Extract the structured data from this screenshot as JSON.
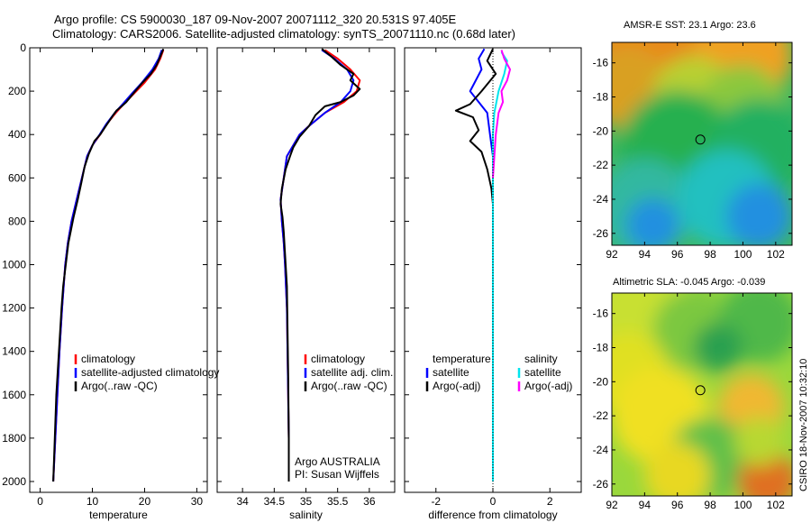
{
  "header": {
    "title_line1": "Argo profile: CS 5900030_187 09-Nov-2007 20071112_320 20.531S 97.405E",
    "title_line2": "Climatology: CARS2006. Satellite-adjusted climatology: synTS_20071110.nc (0.68d later)"
  },
  "side_label": "CSIRO 18-Nov-2007 10:32:10",
  "colors": {
    "climatology": "#ff0000",
    "satellite": "#0000ff",
    "argo": "#000000",
    "salinity_satellite": "#00e5ee",
    "salinity_argo": "#ff00ff"
  },
  "chart_data": [
    {
      "type": "line",
      "xlabel": "temperature",
      "xlim": [
        -2,
        32
      ],
      "ylim": [
        0,
        2050
      ],
      "y_inverted": true,
      "xticks": [
        "0",
        "10",
        "20",
        "30"
      ],
      "xtick_values": [
        0,
        10,
        20,
        30
      ],
      "yticks": [
        "0",
        "200",
        "400",
        "600",
        "800",
        "1000",
        "1200",
        "1400",
        "1600",
        "1800",
        "2000"
      ],
      "ytick_values": [
        0,
        200,
        400,
        600,
        800,
        1000,
        1200,
        1400,
        1600,
        1800,
        2000
      ],
      "legend": [
        "climatology",
        "satellite-adjusted climatology",
        "Argo(..raw -QC)"
      ],
      "series": [
        {
          "name": "climatology",
          "color": "#ff0000",
          "points": [
            [
              23.6,
              10
            ],
            [
              23,
              50
            ],
            [
              22,
              100
            ],
            [
              20,
              160
            ],
            [
              18,
              210
            ],
            [
              16,
              260
            ],
            [
              14.5,
              300
            ],
            [
              12.8,
              350
            ],
            [
              11.5,
              400
            ],
            [
              10,
              450
            ],
            [
              9,
              500
            ],
            [
              8,
              600
            ],
            [
              7,
              700
            ],
            [
              6,
              800
            ],
            [
              5.3,
              900
            ],
            [
              4.8,
              1000
            ],
            [
              4.2,
              1200
            ],
            [
              3.7,
              1400
            ],
            [
              3.3,
              1600
            ],
            [
              2.9,
              1800
            ],
            [
              2.5,
              2000
            ]
          ]
        },
        {
          "name": "satellite-adjusted climatology",
          "color": "#0000ff",
          "points": [
            [
              23.3,
              10
            ],
            [
              22.7,
              50
            ],
            [
              21.5,
              100
            ],
            [
              19.5,
              160
            ],
            [
              17.6,
              210
            ],
            [
              15.8,
              260
            ],
            [
              14.3,
              300
            ],
            [
              12.7,
              350
            ],
            [
              11.4,
              400
            ],
            [
              10,
              450
            ],
            [
              9,
              500
            ],
            [
              8,
              600
            ],
            [
              7,
              700
            ],
            [
              6,
              800
            ],
            [
              5.3,
              900
            ],
            [
              4.8,
              1000
            ],
            [
              4.2,
              1200
            ],
            [
              3.7,
              1400
            ],
            [
              3.3,
              1600
            ],
            [
              2.9,
              1800
            ],
            [
              2.5,
              2000
            ]
          ]
        },
        {
          "name": "Argo(..raw -QC)",
          "color": "#000000",
          "points": [
            [
              23.6,
              5
            ],
            [
              23,
              40
            ],
            [
              22.3,
              80
            ],
            [
              21.2,
              120
            ],
            [
              19.6,
              160
            ],
            [
              18.2,
              200
            ],
            [
              16.5,
              250
            ],
            [
              15.6,
              270
            ],
            [
              14.6,
              290
            ],
            [
              14,
              310
            ],
            [
              12.6,
              360
            ],
            [
              11.5,
              400
            ],
            [
              10.4,
              430
            ],
            [
              9.3,
              490
            ],
            [
              8.5,
              550
            ],
            [
              7.9,
              620
            ],
            [
              7.2,
              700
            ],
            [
              6.4,
              780
            ],
            [
              5.9,
              840
            ],
            [
              5.4,
              900
            ],
            [
              4.9,
              1000
            ],
            [
              4.4,
              1100
            ],
            [
              4.1,
              1200
            ],
            [
              3.6,
              1400
            ],
            [
              3.1,
              1600
            ],
            [
              2.8,
              1800
            ],
            [
              2.5,
              2000
            ]
          ]
        }
      ]
    },
    {
      "type": "line",
      "xlabel": "salinity",
      "xlim": [
        33.6,
        36.4
      ],
      "ylim": [
        0,
        2050
      ],
      "y_inverted": true,
      "xticks": [
        "34",
        "34.5",
        "35",
        "35.5",
        "36"
      ],
      "xtick_values": [
        34,
        34.5,
        35,
        35.5,
        36
      ],
      "legend": [
        "climatology",
        "satellite adj. clim.",
        "Argo(..raw -QC)"
      ],
      "annotation": [
        "Argo AUSTRALIA",
        "PI: Susan Wijffels"
      ],
      "series": [
        {
          "name": "climatology",
          "color": "#ff0000",
          "points": [
            [
              35.3,
              10
            ],
            [
              35.5,
              50
            ],
            [
              35.7,
              100
            ],
            [
              35.85,
              150
            ],
            [
              35.8,
              200
            ],
            [
              35.6,
              250
            ],
            [
              35.3,
              300
            ],
            [
              35.05,
              360
            ],
            [
              34.9,
              400
            ],
            [
              34.8,
              450
            ],
            [
              34.7,
              500
            ],
            [
              34.65,
              600
            ],
            [
              34.6,
              700
            ],
            [
              34.62,
              800
            ],
            [
              34.65,
              900
            ],
            [
              34.67,
              1000
            ],
            [
              34.7,
              1200
            ],
            [
              34.71,
              1400
            ],
            [
              34.72,
              1600
            ],
            [
              34.73,
              1800
            ],
            [
              34.73,
              2000
            ]
          ]
        },
        {
          "name": "satellite adj. clim.",
          "color": "#0000ff",
          "points": [
            [
              35.25,
              10
            ],
            [
              35.45,
              50
            ],
            [
              35.65,
              100
            ],
            [
              35.75,
              150
            ],
            [
              35.7,
              200
            ],
            [
              35.55,
              250
            ],
            [
              35.3,
              300
            ],
            [
              35.05,
              360
            ],
            [
              34.9,
              400
            ],
            [
              34.8,
              450
            ],
            [
              34.7,
              500
            ],
            [
              34.65,
              600
            ],
            [
              34.6,
              700
            ],
            [
              34.62,
              800
            ],
            [
              34.65,
              900
            ],
            [
              34.67,
              1000
            ],
            [
              34.7,
              1200
            ],
            [
              34.71,
              1400
            ],
            [
              34.72,
              1600
            ],
            [
              34.73,
              1800
            ],
            [
              34.73,
              2000
            ]
          ]
        },
        {
          "name": "Argo(..raw -QC)",
          "color": "#000000",
          "points": [
            [
              35.25,
              5
            ],
            [
              35.4,
              40
            ],
            [
              35.55,
              80
            ],
            [
              35.75,
              120
            ],
            [
              35.7,
              150
            ],
            [
              35.85,
              190
            ],
            [
              35.75,
              220
            ],
            [
              35.55,
              250
            ],
            [
              35.3,
              270
            ],
            [
              35.15,
              310
            ],
            [
              35.05,
              360
            ],
            [
              34.9,
              410
            ],
            [
              34.8,
              460
            ],
            [
              34.75,
              500
            ],
            [
              34.68,
              560
            ],
            [
              34.62,
              650
            ],
            [
              34.6,
              720
            ],
            [
              34.63,
              780
            ],
            [
              34.65,
              850
            ],
            [
              34.67,
              950
            ],
            [
              34.7,
              1100
            ],
            [
              34.71,
              1300
            ],
            [
              34.72,
              1500
            ],
            [
              34.73,
              1800
            ],
            [
              34.73,
              2000
            ]
          ]
        }
      ]
    },
    {
      "type": "line",
      "xlabel": "difference from climatology",
      "xlim": [
        -3.1,
        3.1
      ],
      "ylim": [
        0,
        2050
      ],
      "y_inverted": true,
      "xticks": [
        "-2",
        "0",
        "2"
      ],
      "xtick_values": [
        -2,
        0,
        2
      ],
      "legend_left": [
        "temperature",
        "satellite",
        "Argo(-adj)"
      ],
      "legend_right": [
        "salinity",
        "satellite",
        "Argo(-adj)"
      ],
      "series": [
        {
          "name": "temperature satellite",
          "color": "#0000ff",
          "points": [
            [
              -0.3,
              5
            ],
            [
              -0.5,
              50
            ],
            [
              -0.4,
              100
            ],
            [
              -0.8,
              200
            ],
            [
              -0.2,
              300
            ],
            [
              -0.1,
              400
            ],
            [
              0,
              500
            ],
            [
              0,
              700
            ],
            [
              0,
              2000
            ]
          ]
        },
        {
          "name": "temperature Argo(-adj)",
          "color": "#000000",
          "points": [
            [
              0,
              5
            ],
            [
              -0.2,
              60
            ],
            [
              0.1,
              120
            ],
            [
              -0.4,
              200
            ],
            [
              -0.8,
              260
            ],
            [
              -1.3,
              290
            ],
            [
              -0.7,
              320
            ],
            [
              -0.5,
              380
            ],
            [
              -0.8,
              430
            ],
            [
              -0.4,
              480
            ],
            [
              -0.2,
              560
            ],
            [
              -0.05,
              650
            ],
            [
              0,
              720
            ],
            [
              0,
              800
            ],
            [
              0,
              1000
            ],
            [
              0,
              1500
            ],
            [
              0,
              1960
            ]
          ]
        },
        {
          "name": "salinity satellite",
          "color": "#00e5ee",
          "points": [
            [
              0.3,
              20
            ],
            [
              0.5,
              60
            ],
            [
              0.4,
              120
            ],
            [
              0.2,
              200
            ],
            [
              0.05,
              300
            ],
            [
              0,
              400
            ],
            [
              0,
              2000
            ]
          ]
        },
        {
          "name": "salinity Argo(-adj)",
          "color": "#ff00ff",
          "points": [
            [
              0.3,
              10
            ],
            [
              0.4,
              50
            ],
            [
              0.6,
              100
            ],
            [
              0.5,
              150
            ],
            [
              0.3,
              200
            ],
            [
              0.35,
              250
            ],
            [
              0.2,
              300
            ],
            [
              0.1,
              400
            ],
            [
              0.05,
              500
            ],
            [
              0,
              600
            ]
          ]
        }
      ]
    },
    {
      "type": "heatmap",
      "title": "AMSR-E SST: 23.1  Argo: 23.6",
      "xticks": [
        "92",
        "94",
        "96",
        "98",
        "100",
        "102"
      ],
      "xtick_values": [
        92,
        94,
        96,
        98,
        100,
        102
      ],
      "yticks": [
        "-16",
        "-18",
        "-20",
        "-22",
        "-24",
        "-26"
      ],
      "ytick_values": [
        -16,
        -18,
        -20,
        -22,
        -24,
        -26
      ],
      "xlim": [
        92,
        103
      ],
      "ylim": [
        -26.7,
        -14.8
      ],
      "marker": [
        97.4,
        -20.5
      ],
      "blobs": [
        {
          "lon": 95,
          "lat": -15.5,
          "color": "#e88a1a",
          "r": 4
        },
        {
          "lon": 100,
          "lat": -15.5,
          "color": "#f0a020",
          "r": 3
        },
        {
          "lon": 93,
          "lat": -17.5,
          "color": "#d9a020",
          "r": 2.5
        },
        {
          "lon": 97,
          "lat": -18,
          "color": "#b8d030",
          "r": 2.5
        },
        {
          "lon": 100,
          "lat": -18.5,
          "color": "#8cc83c",
          "r": 2.5
        },
        {
          "lon": 96,
          "lat": -21,
          "color": "#28b050",
          "r": 3.5
        },
        {
          "lon": 101,
          "lat": -21,
          "color": "#20b060",
          "r": 3
        },
        {
          "lon": 94,
          "lat": -24.5,
          "color": "#30b8a0",
          "r": 3
        },
        {
          "lon": 99,
          "lat": -24,
          "color": "#20c0c0",
          "r": 3
        },
        {
          "lon": 94.5,
          "lat": -25.5,
          "color": "#2090e0",
          "r": 1.6
        },
        {
          "lon": 101,
          "lat": -25,
          "color": "#2090e0",
          "r": 2
        }
      ]
    },
    {
      "type": "heatmap",
      "title": "Altimetric SLA: -0.045  Argo: -0.039",
      "xticks": [
        "92",
        "94",
        "96",
        "98",
        "100",
        "102"
      ],
      "xtick_values": [
        92,
        94,
        96,
        98,
        100,
        102
      ],
      "yticks": [
        "-16",
        "-18",
        "-20",
        "-22",
        "-24",
        "-26"
      ],
      "ytick_values": [
        -16,
        -18,
        -20,
        -22,
        -24,
        -26
      ],
      "xlim": [
        92,
        103
      ],
      "ylim": [
        -26.7,
        -14.8
      ],
      "marker": [
        97.4,
        -20.5
      ],
      "blobs": [
        {
          "lon": 94,
          "lat": -16,
          "color": "#c8e030",
          "r": 3
        },
        {
          "lon": 97,
          "lat": -17,
          "color": "#7cc840",
          "r": 2.5
        },
        {
          "lon": 101,
          "lat": -16.5,
          "color": "#50b848",
          "r": 2.5
        },
        {
          "lon": 98.5,
          "lat": -18,
          "color": "#2ca050",
          "r": 1.5
        },
        {
          "lon": 93,
          "lat": -19.5,
          "color": "#e0e020",
          "r": 2.5
        },
        {
          "lon": 95,
          "lat": -22,
          "color": "#f0e020",
          "r": 3
        },
        {
          "lon": 100.5,
          "lat": -21.5,
          "color": "#f0b830",
          "r": 2
        },
        {
          "lon": 98,
          "lat": -24.5,
          "color": "#60c048",
          "r": 2.5
        },
        {
          "lon": 96,
          "lat": -25.5,
          "color": "#e8d820",
          "r": 2
        },
        {
          "lon": 101.5,
          "lat": -25.8,
          "color": "#e07020",
          "r": 1.8
        },
        {
          "lon": 101,
          "lat": -23.5,
          "color": "#b8d830",
          "r": 1.5
        }
      ]
    }
  ]
}
